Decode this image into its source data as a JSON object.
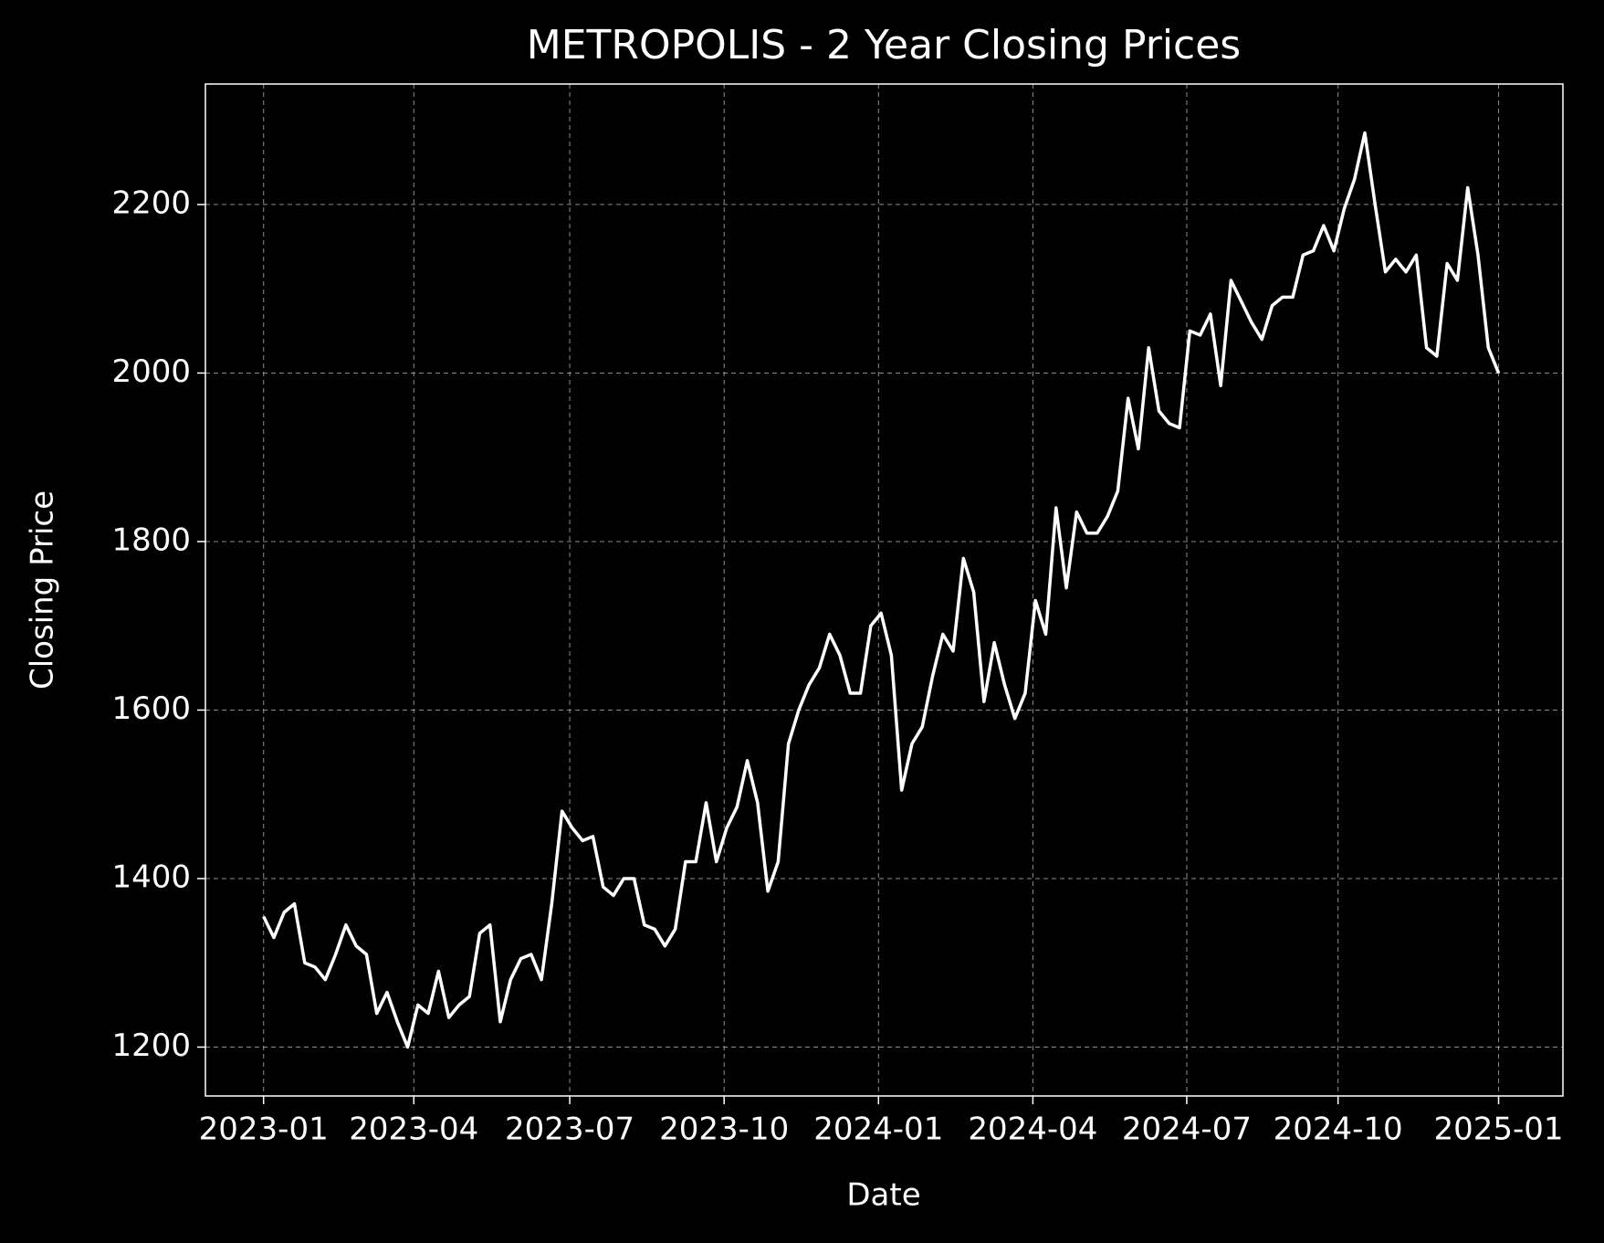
{
  "chart_data": {
    "type": "line",
    "title": "METROPOLIS - 2 Year Closing Prices",
    "xlabel": "Date",
    "ylabel": "Closing Price",
    "xlim": [
      -1.13,
      25.25
    ],
    "ylim": [
      1142,
      2343
    ],
    "xticks": [
      {
        "value": 0,
        "label": "2023-01"
      },
      {
        "value": 2.92,
        "label": "2023-04"
      },
      {
        "value": 5.95,
        "label": "2023-07"
      },
      {
        "value": 8.95,
        "label": "2023-10"
      },
      {
        "value": 11.95,
        "label": "2024-01"
      },
      {
        "value": 14.95,
        "label": "2024-04"
      },
      {
        "value": 17.94,
        "label": "2024-07"
      },
      {
        "value": 20.88,
        "label": "2024-10"
      },
      {
        "value": 24,
        "label": "2025-01"
      }
    ],
    "yticks": [
      1200,
      1400,
      1600,
      1800,
      2000,
      2200
    ],
    "grid": true,
    "x": [
      0,
      0.2,
      0.4,
      0.6,
      0.8,
      1,
      1.2,
      1.4,
      1.6,
      1.8,
      2,
      2.2,
      2.4,
      2.6,
      2.8,
      3,
      3.2,
      3.4,
      3.6,
      3.8,
      4,
      4.2,
      4.4,
      4.6,
      4.8,
      5,
      5.2,
      5.4,
      5.6,
      5.8,
      6,
      6.2,
      6.4,
      6.6,
      6.8,
      7,
      7.2,
      7.4,
      7.6,
      7.8,
      8,
      8.2,
      8.4,
      8.6,
      8.8,
      9,
      9.2,
      9.4,
      9.6,
      9.8,
      10,
      10.2,
      10.4,
      10.6,
      10.8,
      11,
      11.2,
      11.4,
      11.6,
      11.8,
      12,
      12.2,
      12.4,
      12.6,
      12.8,
      13,
      13.2,
      13.4,
      13.6,
      13.8,
      14,
      14.2,
      14.4,
      14.6,
      14.8,
      15,
      15.2,
      15.4,
      15.6,
      15.8,
      16,
      16.2,
      16.4,
      16.6,
      16.8,
      17,
      17.2,
      17.4,
      17.6,
      17.8,
      18,
      18.2,
      18.4,
      18.6,
      18.8,
      19,
      19.2,
      19.4,
      19.6,
      19.8,
      20,
      20.2,
      20.4,
      20.6,
      20.8,
      21,
      21.2,
      21.4,
      21.6,
      21.8,
      22,
      22.2,
      22.4,
      22.6,
      22.8,
      23,
      23.2,
      23.4,
      23.6,
      23.8,
      24
    ],
    "series": [
      {
        "color": "#ffffff",
        "values": [
          1355,
          1330,
          1360,
          1370,
          1300,
          1295,
          1280,
          1310,
          1345,
          1320,
          1310,
          1240,
          1265,
          1230,
          1200,
          1250,
          1240,
          1290,
          1235,
          1250,
          1260,
          1335,
          1345,
          1230,
          1280,
          1305,
          1310,
          1280,
          1370,
          1480,
          1460,
          1445,
          1450,
          1390,
          1380,
          1400,
          1400,
          1345,
          1340,
          1320,
          1340,
          1420,
          1420,
          1490,
          1420,
          1460,
          1485,
          1540,
          1490,
          1385,
          1420,
          1560,
          1600,
          1630,
          1650,
          1690,
          1665,
          1620,
          1620,
          1700,
          1715,
          1665,
          1505,
          1560,
          1580,
          1640,
          1690,
          1670,
          1780,
          1740,
          1610,
          1680,
          1630,
          1590,
          1620,
          1730,
          1690,
          1840,
          1745,
          1835,
          1810,
          1810,
          1830,
          1860,
          1970,
          1910,
          2030,
          1955,
          1940,
          1935,
          2050,
          2045,
          2070,
          1985,
          2110,
          2085,
          2060,
          2040,
          2080,
          2090,
          2090,
          2140,
          2145,
          2175,
          2145,
          2195,
          2230,
          2285,
          2200,
          2120,
          2135,
          2120,
          2140,
          2030,
          2020,
          2130,
          2110,
          2220,
          2140,
          2030,
          2000
        ]
      }
    ]
  }
}
